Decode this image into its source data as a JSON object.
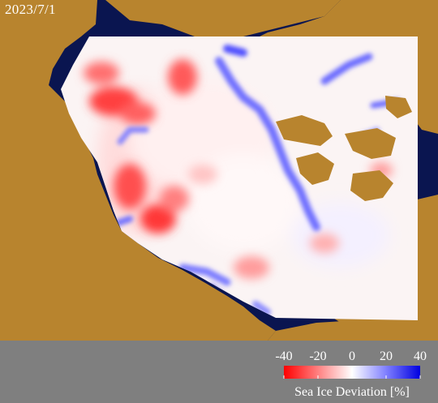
{
  "date": "2023/7/1",
  "colors": {
    "land": "#b8842e",
    "ocean": "#0a1550",
    "panel": "#7f7f7f",
    "ice_neutral": "#ffffff",
    "deficit": "#ff1a1a",
    "surplus": "#1a1aff"
  },
  "icons": [
    "sea-ice-deviation-map",
    "colorbar"
  ],
  "colorbar": {
    "title": "Sea Ice Deviation [%]",
    "min": -40,
    "max": 40,
    "ticks": [
      "-40",
      "-20",
      "0",
      "20",
      "40"
    ],
    "tick_values": [
      -40,
      -20,
      0,
      20,
      40
    ],
    "stops": [
      {
        "value": -40,
        "color": "#ff0000"
      },
      {
        "value": -20,
        "color": "#ff8080"
      },
      {
        "value": 0,
        "color": "#ffffff"
      },
      {
        "value": 20,
        "color": "#8080ff"
      },
      {
        "value": 40,
        "color": "#0000e0"
      }
    ]
  }
}
